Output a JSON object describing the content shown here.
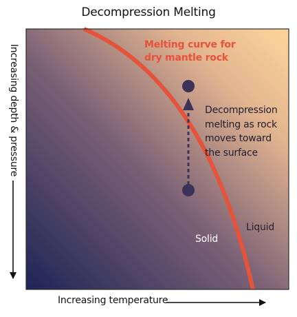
{
  "title": "Decompression Melting",
  "axes": {
    "y_label": "Increasing depth & pressure",
    "x_label": "Increasing temperature"
  },
  "melting_curve": {
    "label_line1": "Melting curve for",
    "label_line2": "dry mantle rock",
    "color": "#e4533a"
  },
  "process": {
    "line1": "Decompression",
    "line2": "melting as rock",
    "line3": "moves toward",
    "line4": "the surface",
    "marker_color": "#3d3358"
  },
  "regions": {
    "solid": "Solid",
    "liquid": "Liquid"
  },
  "colors": {
    "deep_cold": "#1d2556",
    "mid": "#7a6075",
    "hot_shallow": "#fdd59a",
    "axis": "#111111"
  }
}
